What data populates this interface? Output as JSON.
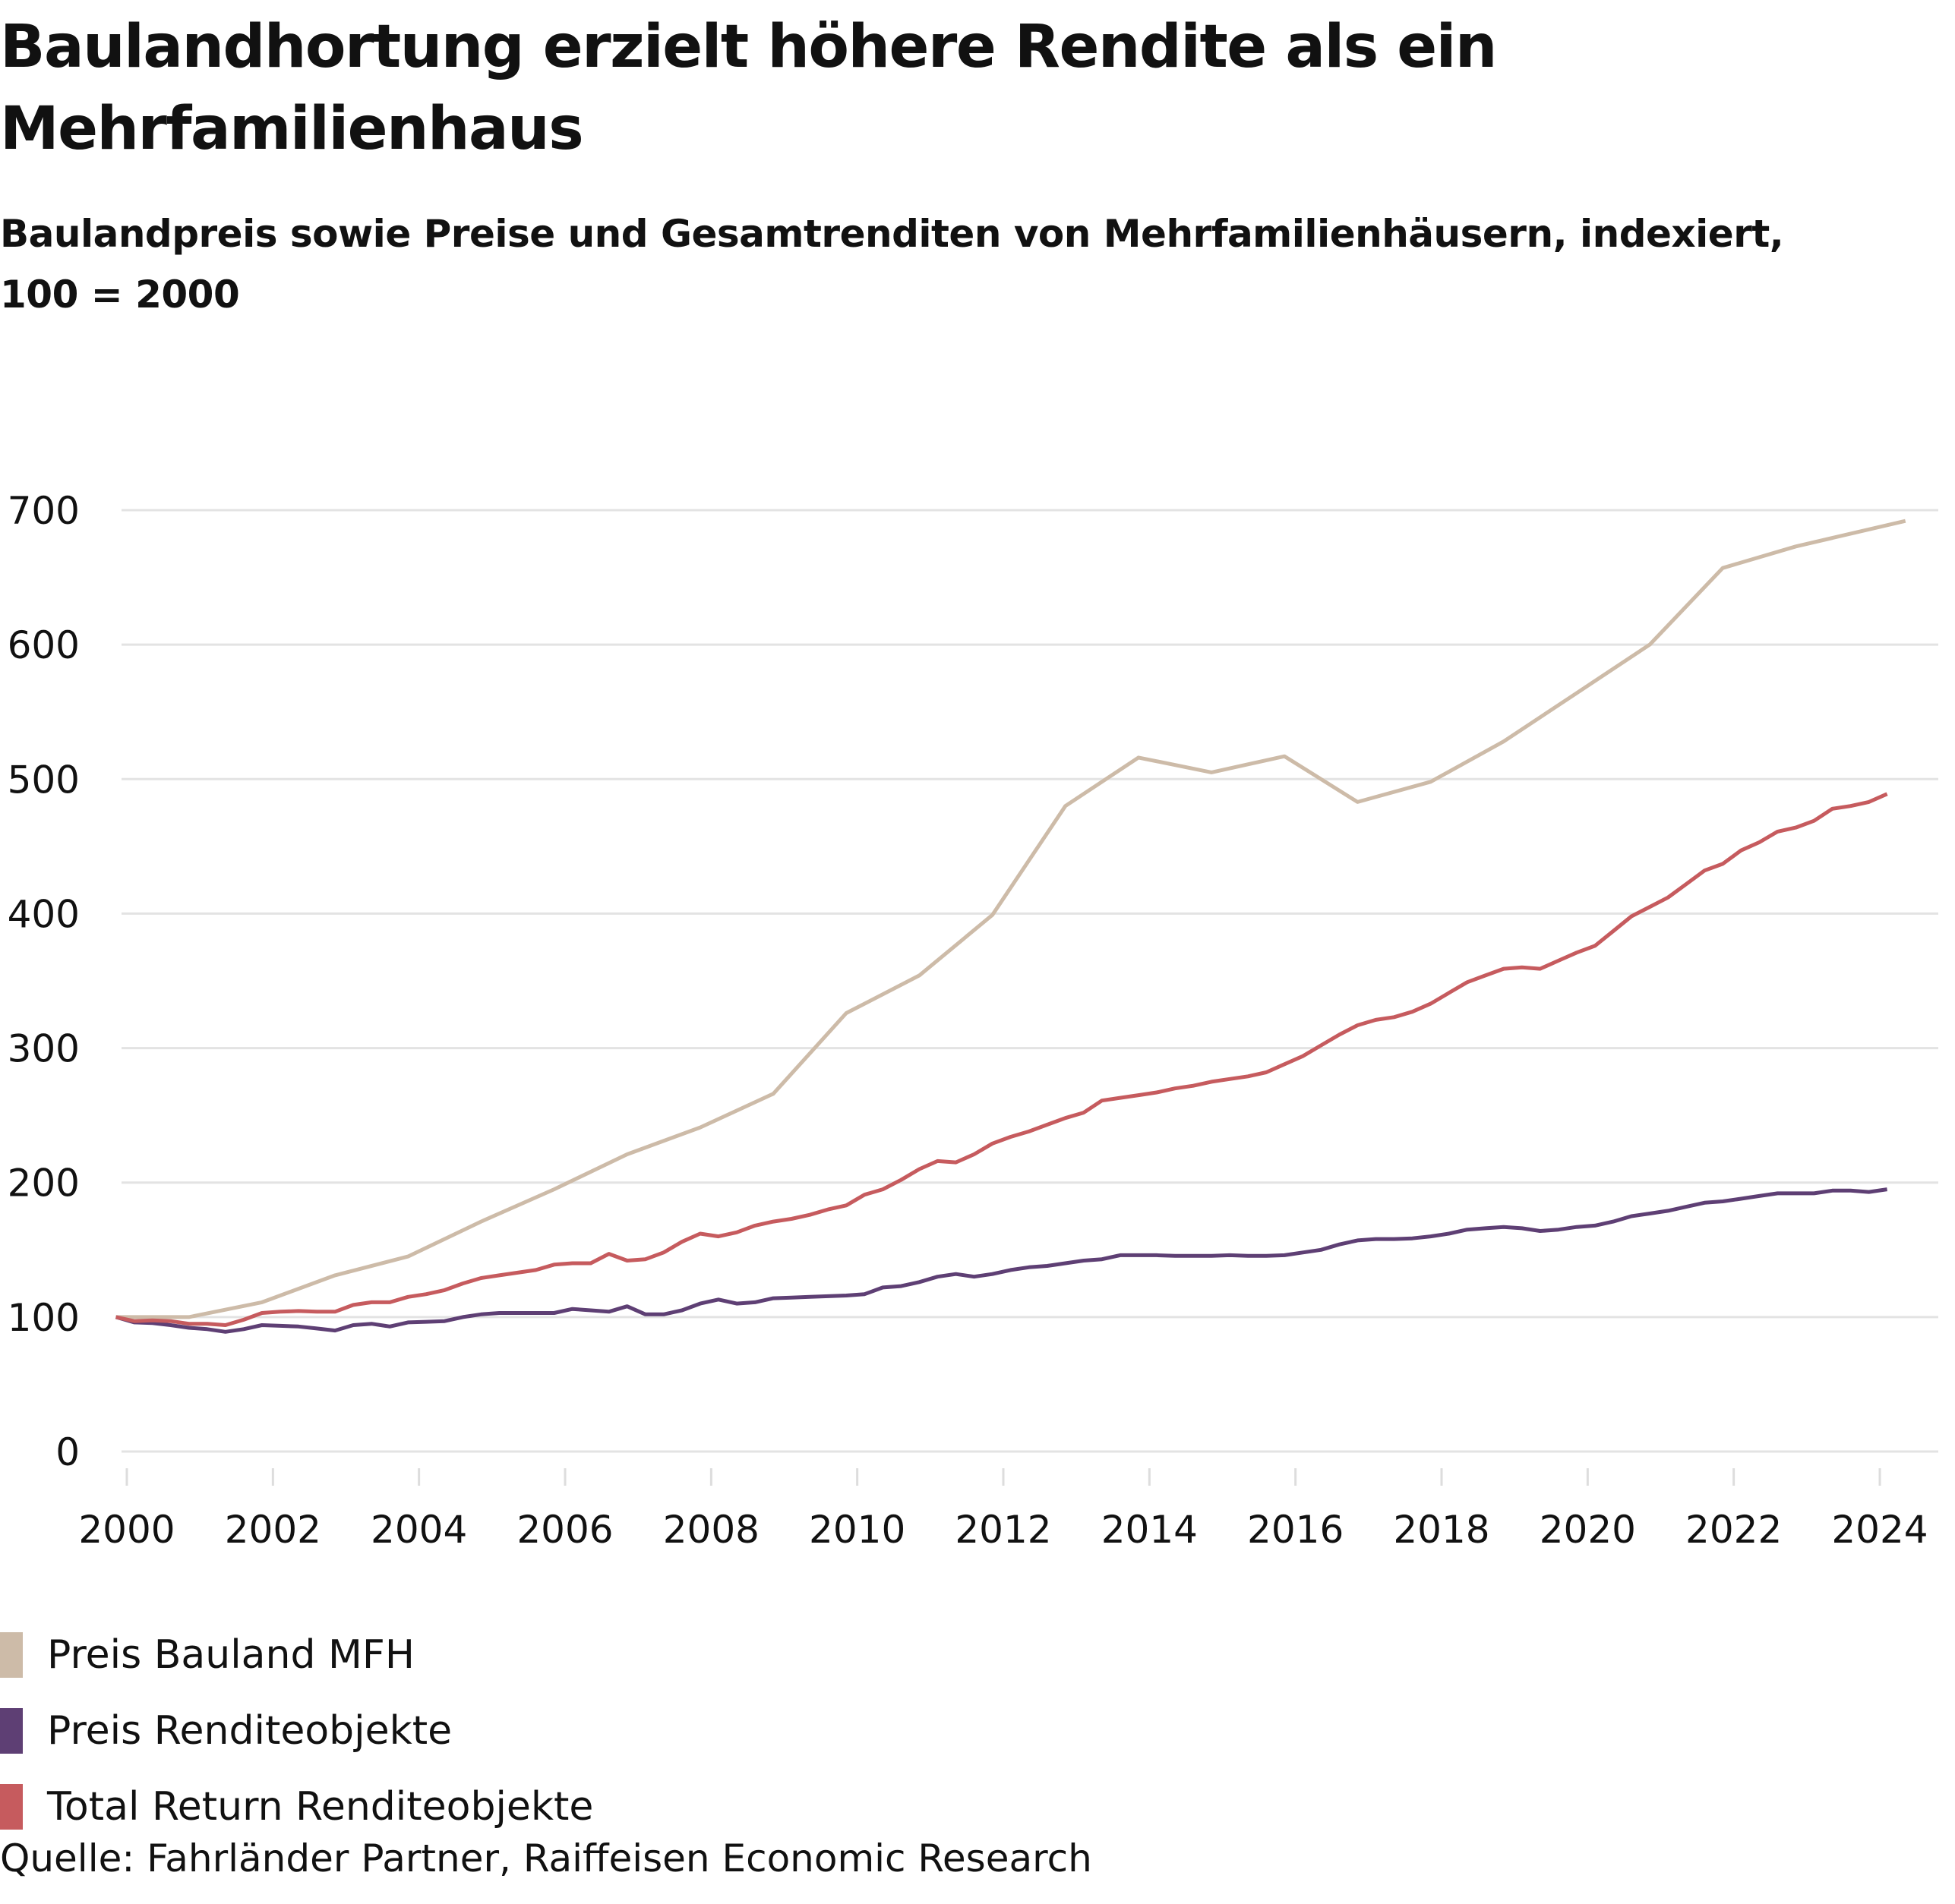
{
  "header": {
    "title": "Baulandhortung erzielt höhere Rendite als ein Mehrfamilienhaus",
    "subtitle": "Baulandpreis sowie Preise und Gesamtrenditen von Mehrfamilienhäusern, indexiert, 100 = 2000"
  },
  "source": "Quelle: Fahrländer Partner, Raiffeisen Economic Research",
  "chart_data": {
    "type": "line",
    "title": "Baulandhortung erzielt höhere Rendite als ein Mehrfamilienhaus",
    "subtitle": "Baulandpreis sowie Preise und Gesamtrenditen von Mehrfamilienhäusern, indexiert, 100 = 2000",
    "xlabel": "",
    "ylabel": "",
    "xlim": [
      1999.85,
      2024.95
    ],
    "ylim": [
      0,
      700
    ],
    "yticks": [
      0,
      100,
      200,
      300,
      400,
      500,
      600,
      700
    ],
    "xticks": [
      2000,
      2002,
      2004,
      2006,
      2008,
      2010,
      2012,
      2014,
      2016,
      2018,
      2020,
      2022,
      2024
    ],
    "grid": "horizontal",
    "legend": "bottom-left",
    "series": [
      {
        "name": "Preis Bauland MFH",
        "color": "#CDBBA8",
        "x": [
          1999.85,
          2000.85,
          2001.85,
          2002.85,
          2003.85,
          2004.85,
          2005.85,
          2006.85,
          2007.85,
          2008.85,
          2009.85,
          2010.85,
          2011.85,
          2012.85,
          2013.85,
          2014.85,
          2015.85,
          2016.85,
          2017.85,
          2018.85,
          2019.85,
          2020.85,
          2021.85,
          2022.85,
          2024.35
        ],
        "values": [
          100,
          100,
          111,
          131,
          145,
          171,
          195,
          221,
          241,
          266,
          326,
          354,
          399,
          480,
          516,
          505,
          517,
          483,
          498,
          528,
          564,
          600,
          657,
          673,
          692
        ]
      },
      {
        "name": "Preis Renditeobjekte",
        "color": "#5E3F74",
        "x_start": 1999.85,
        "x_step": 0.25,
        "values": [
          100,
          96,
          95.5,
          94,
          92,
          91,
          89,
          91,
          94,
          93.5,
          93,
          91.5,
          90,
          94,
          95,
          93,
          96,
          96.5,
          97,
          100,
          102,
          103,
          103,
          103,
          103,
          106,
          105,
          104,
          108,
          102,
          102,
          105,
          110,
          113,
          110,
          111,
          114,
          114.5,
          115,
          115.5,
          116,
          117,
          122,
          123,
          126,
          130,
          132,
          130,
          132,
          135,
          137,
          138,
          140,
          142,
          143,
          146,
          146,
          146,
          145.5,
          145.5,
          145.5,
          146,
          145.5,
          145.5,
          146,
          148,
          150,
          154,
          157,
          158,
          158,
          158.5,
          160,
          162,
          165,
          166,
          167,
          166,
          164,
          165,
          167,
          168,
          171,
          175,
          177,
          179,
          182,
          185,
          186,
          188,
          190,
          192,
          192,
          192,
          194,
          194,
          193,
          195
        ]
      },
      {
        "name": "Total Return Renditeobjekte",
        "color": "#C65B5E",
        "x_start": 1999.85,
        "x_step": 0.25,
        "values": [
          100,
          97,
          97.5,
          97,
          95,
          95,
          94,
          98,
          103,
          104,
          104.5,
          104,
          104,
          109,
          111,
          111,
          115,
          117,
          120,
          125,
          129,
          131,
          133,
          135,
          139,
          140,
          140,
          147,
          142,
          143,
          148,
          156,
          162,
          160,
          163,
          168,
          171,
          173,
          176,
          180,
          183,
          191,
          195,
          202,
          210,
          216,
          215,
          221,
          229,
          234,
          238,
          243,
          248,
          252,
          261,
          263,
          265,
          267,
          270,
          272,
          275,
          277,
          279,
          282,
          288,
          294,
          302,
          310,
          317,
          321,
          323,
          327,
          333,
          341,
          349,
          354,
          359,
          360,
          359,
          365,
          371,
          376,
          387,
          398,
          405,
          412,
          422,
          432,
          437,
          447,
          453,
          461,
          464,
          469,
          478,
          480,
          483,
          489
        ]
      }
    ]
  }
}
